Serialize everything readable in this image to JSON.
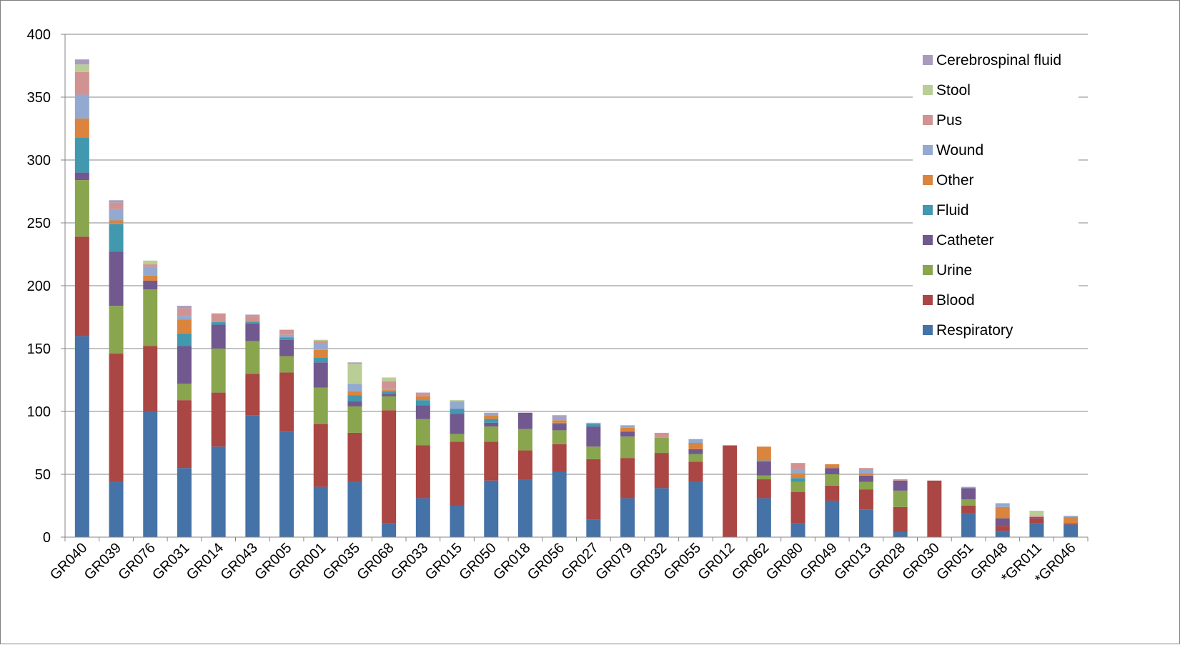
{
  "chart_data": {
    "type": "bar",
    "stacked": true,
    "title": "",
    "xlabel": "",
    "ylabel": "",
    "ylim": [
      0,
      400
    ],
    "yticks": [
      0,
      50,
      100,
      150,
      200,
      250,
      300,
      350,
      400
    ],
    "grid": true,
    "legend_position": "top-right",
    "categories": [
      "GR040",
      "GR039",
      "GR076",
      "GR031",
      "GR014",
      "GR043",
      "GR005",
      "GR001",
      "GR035",
      "GR068",
      "GR033",
      "GR015",
      "GR050",
      "GR018",
      "GR056",
      "GR027",
      "GR079",
      "GR032",
      "GR055",
      "GR012",
      "GR062",
      "GR080",
      "GR049",
      "GR013",
      "GR028",
      "GR030",
      "GR051",
      "GR048",
      "*GR011",
      "*GR046"
    ],
    "series": [
      {
        "name": "Respiratory",
        "color": "#4572A7",
        "values": [
          160,
          44,
          100,
          55,
          72,
          97,
          84,
          40,
          44,
          11,
          31,
          25,
          45,
          46,
          52,
          14,
          31,
          39,
          44,
          0,
          31,
          11,
          29,
          22,
          4,
          0,
          19,
          5,
          11,
          10
        ]
      },
      {
        "name": "Blood",
        "color": "#AA4643",
        "values": [
          79,
          102,
          52,
          54,
          43,
          33,
          47,
          50,
          39,
          90,
          42,
          51,
          31,
          23,
          22,
          48,
          32,
          28,
          16,
          73,
          15,
          25,
          12,
          16,
          20,
          45,
          6,
          4,
          4,
          1
        ]
      },
      {
        "name": "Urine",
        "color": "#89A54E",
        "values": [
          45,
          38,
          45,
          13,
          35,
          26,
          13,
          29,
          21,
          11,
          21,
          6,
          12,
          17,
          11,
          10,
          17,
          12,
          6,
          0,
          3,
          8,
          9,
          6,
          13,
          0,
          5,
          0,
          0,
          0
        ]
      },
      {
        "name": "Catheter",
        "color": "#71588F",
        "values": [
          6,
          43,
          7,
          30,
          19,
          14,
          13,
          20,
          4,
          2,
          11,
          16,
          3,
          13,
          5,
          16,
          4,
          0,
          4,
          0,
          11,
          0,
          5,
          5,
          8,
          0,
          9,
          6,
          1,
          0
        ]
      },
      {
        "name": "Fluid",
        "color": "#4198AF",
        "values": [
          28,
          22,
          0,
          10,
          2,
          1,
          2,
          4,
          5,
          2,
          4,
          4,
          3,
          0,
          1,
          2,
          0,
          0,
          0,
          0,
          1,
          3,
          0,
          0,
          0,
          0,
          0,
          0,
          0,
          0
        ]
      },
      {
        "name": "Other",
        "color": "#DB843D",
        "values": [
          15,
          3,
          4,
          11,
          0,
          1,
          0,
          6,
          3,
          1,
          3,
          0,
          3,
          0,
          2,
          0,
          3,
          0,
          5,
          0,
          11,
          4,
          3,
          2,
          0,
          0,
          0,
          9,
          0,
          5
        ]
      },
      {
        "name": "Wound",
        "color": "#93A9CF",
        "values": [
          19,
          9,
          7,
          3,
          0,
          0,
          2,
          5,
          6,
          1,
          0,
          6,
          1,
          0,
          3,
          1,
          2,
          0,
          3,
          0,
          0,
          3,
          0,
          3,
          0,
          0,
          1,
          3,
          0,
          1
        ]
      },
      {
        "name": "Pus",
        "color": "#D19392",
        "values": [
          18,
          5,
          2,
          6,
          7,
          4,
          4,
          2,
          0,
          6,
          2,
          0,
          1,
          0,
          1,
          0,
          0,
          4,
          0,
          0,
          0,
          5,
          0,
          1,
          1,
          0,
          0,
          0,
          1,
          0
        ]
      },
      {
        "name": "Stool",
        "color": "#B9CD96",
        "values": [
          6,
          0,
          3,
          0,
          0,
          0,
          0,
          1,
          16,
          3,
          0,
          1,
          0,
          0,
          0,
          0,
          0,
          0,
          0,
          0,
          0,
          0,
          0,
          0,
          0,
          0,
          0,
          0,
          4,
          0
        ]
      },
      {
        "name": "Cerebrospinal fluid",
        "color": "#A99BBD",
        "values": [
          4,
          2,
          0,
          2,
          0,
          1,
          0,
          0,
          1,
          0,
          1,
          0,
          0,
          0,
          0,
          0,
          0,
          0,
          0,
          0,
          0,
          0,
          0,
          0,
          0,
          0,
          0,
          0,
          0,
          0
        ]
      }
    ]
  }
}
